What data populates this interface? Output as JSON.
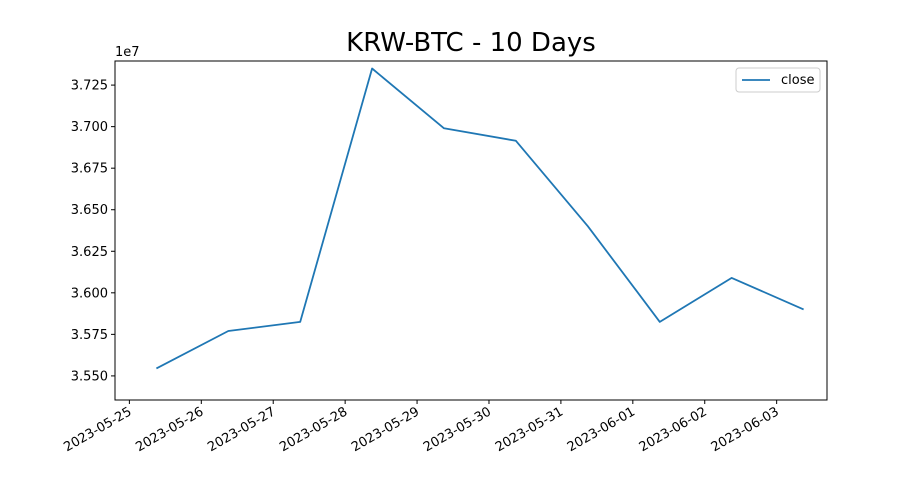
{
  "chart_data": {
    "type": "line",
    "title": "KRW-BTC - 10 Days",
    "xlabel": "",
    "ylabel": "",
    "y_offset_label": "1e7",
    "x_tick_labels": [
      "2023-05-25",
      "2023-05-26",
      "2023-05-27",
      "2023-05-28",
      "2023-05-29",
      "2023-05-30",
      "2023-05-31",
      "2023-06-01",
      "2023-06-02",
      "2023-06-03"
    ],
    "y_tick_labels": [
      "3.550",
      "3.575",
      "3.600",
      "3.625",
      "3.650",
      "3.675",
      "3.700",
      "3.725"
    ],
    "y_ticks": [
      35500000,
      35750000,
      36000000,
      36250000,
      36500000,
      36750000,
      37000000,
      37250000
    ],
    "xlim": [
      "2023-05-24T19:12",
      "2023-06-03T16:48"
    ],
    "ylim": [
      35355000,
      37395000
    ],
    "legend_position": "top-right",
    "grid": false,
    "series": [
      {
        "name": "close",
        "color": "#1f77b4",
        "x": [
          "2023-05-25T09:00",
          "2023-05-26T09:00",
          "2023-05-27T09:00",
          "2023-05-28T09:00",
          "2023-05-29T09:00",
          "2023-05-30T09:00",
          "2023-05-31T09:00",
          "2023-06-01T09:00",
          "2023-06-02T09:00",
          "2023-06-03T09:00"
        ],
        "values": [
          35545000,
          35770000,
          35825000,
          37350000,
          36990000,
          36915000,
          36400000,
          35825000,
          36090000,
          35900000
        ]
      }
    ]
  }
}
